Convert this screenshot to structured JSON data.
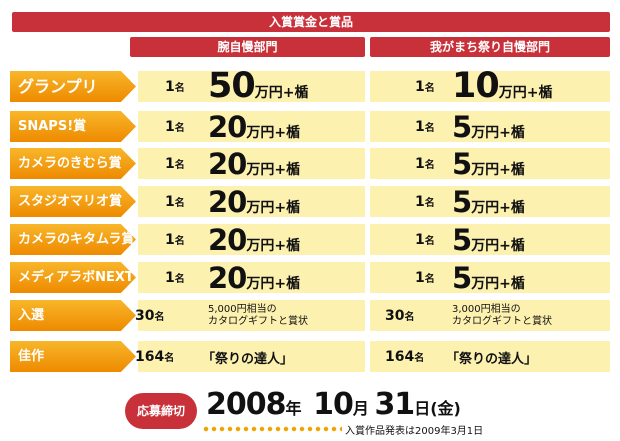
{
  "header": {
    "title": "入賞賞金と賞品",
    "col1": "腕自慢部門",
    "col2": "我がまち祭り自慢部門"
  },
  "rows": [
    {
      "label": "グランプリ",
      "c1_count": "1",
      "c1_amount": "50",
      "c1_unit": "万円+楯",
      "c2_count": "1",
      "c2_amount": "10",
      "c2_unit": "万円+楯"
    },
    {
      "label": "SNAPS!賞",
      "c1_count": "1",
      "c1_amount": "20",
      "c1_unit": "万円+楯",
      "c2_count": "1",
      "c2_amount": "5",
      "c2_unit": "万円+楯"
    },
    {
      "label": "カメラのきむら賞",
      "c1_count": "1",
      "c1_amount": "20",
      "c1_unit": "万円+楯",
      "c2_count": "1",
      "c2_amount": "5",
      "c2_unit": "万円+楯"
    },
    {
      "label": "スタジオマリオ賞",
      "c1_count": "1",
      "c1_amount": "20",
      "c1_unit": "万円+楯",
      "c2_count": "1",
      "c2_amount": "5",
      "c2_unit": "万円+楯"
    },
    {
      "label": "カメラのキタムラ賞",
      "c1_count": "1",
      "c1_amount": "20",
      "c1_unit": "万円+楯",
      "c2_count": "1",
      "c2_amount": "5",
      "c2_unit": "万円+楯"
    },
    {
      "label": "メディアラボNEXT賞",
      "c1_count": "1",
      "c1_amount": "20",
      "c1_unit": "万円+楯",
      "c2_count": "1",
      "c2_amount": "5",
      "c2_unit": "万円+楯"
    },
    {
      "label": "入選",
      "c1_count": "30",
      "c1_desc1": "5,000円相当の",
      "c1_desc2": "カタログギフトと賞状",
      "c2_count": "30",
      "c2_desc1": "3,000円相当の",
      "c2_desc2": "カタログギフトと賞状"
    },
    {
      "label": "佳作",
      "c1_count": "164",
      "c1_desc": "「祭りの達人」",
      "c2_count": "164",
      "c2_desc": "「祭りの達人」"
    }
  ],
  "count_unit": "名",
  "deadline": {
    "badge": "応募締切",
    "year": "2008",
    "year_unit": "年",
    "month": "10",
    "month_unit": "月",
    "day": "31",
    "day_unit": "日",
    "weekday": "(金)",
    "announcement": "入賞作品発表は2009年3月1日"
  },
  "colors": {
    "red": "#c8303a",
    "orange": "#ee8a00",
    "cream": "#fdf1b0"
  }
}
